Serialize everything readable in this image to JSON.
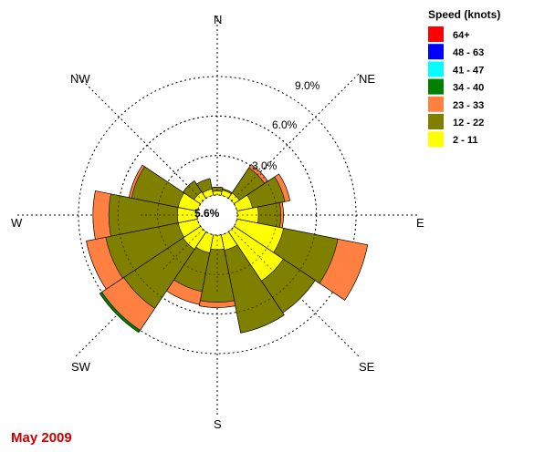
{
  "chart_data": {
    "type": "wind-rose",
    "legend_title": "Speed (knots)",
    "bins": [
      {
        "label": "64+",
        "color": "#ff0000"
      },
      {
        "label": "48 - 63",
        "color": "#0000ff"
      },
      {
        "label": "41 - 47",
        "color": "#00ffff"
      },
      {
        "label": "34 - 40",
        "color": "#008000"
      },
      {
        "label": "23 - 33",
        "color": "#ff8040"
      },
      {
        "label": "12 - 22",
        "color": "#808000"
      },
      {
        "label": "2 - 11",
        "color": "#ffff00"
      }
    ],
    "rings": [
      {
        "value": 3.0,
        "label": "3.0%"
      },
      {
        "value": 6.0,
        "label": "6.0%"
      },
      {
        "value": 9.0,
        "label": "9.0%"
      }
    ],
    "calm_label": "5.6%",
    "calm_percent": 5.6,
    "directions": [
      "N",
      "NNE",
      "NE",
      "ENE",
      "E",
      "ESE",
      "SE",
      "SSE",
      "S",
      "SSW",
      "SW",
      "WSW",
      "W",
      "WNW",
      "NW",
      "NNW"
    ],
    "compass_labels": [
      "N",
      "NE",
      "E",
      "SE",
      "S",
      "SW",
      "W",
      "NW"
    ],
    "cumulative_percent": [
      {
        "dir": "N",
        "2-11": 0.3,
        "12-22": 0.6,
        "23-33": 0.6,
        "34-40": 0.6
      },
      {
        "dir": "NNE",
        "2-11": 0.4,
        "12-22": 0.5,
        "23-33": 0.5,
        "34-40": 0.5
      },
      {
        "dir": "NE",
        "2-11": 0.5,
        "12-22": 2.8,
        "23-33": 3.1,
        "34-40": 3.1
      },
      {
        "dir": "ENE",
        "2-11": 1.2,
        "12-22": 3.7,
        "23-33": 4.1,
        "34-40": 4.1
      },
      {
        "dir": "E",
        "2-11": 1.6,
        "12-22": 3.3,
        "23-33": 3.5,
        "34-40": 3.5
      },
      {
        "dir": "ESE",
        "2-11": 3.6,
        "12-22": 7.8,
        "23-33": 10.1,
        "34-40": 10.1
      },
      {
        "dir": "SE",
        "2-11": 4.5,
        "12-22": 7.4,
        "23-33": 7.4,
        "34-40": 7.4
      },
      {
        "dir": "SSE",
        "2-11": 1.2,
        "12-22": 7.6,
        "23-33": 7.6,
        "34-40": 7.6
      },
      {
        "dir": "S",
        "2-11": 1.1,
        "12-22": 5.1,
        "23-33": 5.5,
        "34-40": 5.5
      },
      {
        "dir": "SSW",
        "2-11": 1.4,
        "12-22": 4.4,
        "23-33": 5.4,
        "34-40": 5.4
      },
      {
        "dir": "SW",
        "2-11": 1.6,
        "12-22": 7.0,
        "23-33": 9.0,
        "34-40": 9.2
      },
      {
        "dir": "WSW",
        "2-11": 1.5,
        "12-22": 7.1,
        "23-33": 8.6,
        "34-40": 8.6
      },
      {
        "dir": "W",
        "2-11": 1.5,
        "12-22": 6.7,
        "23-33": 7.9,
        "34-40": 7.9
      },
      {
        "dir": "WNW",
        "2-11": 1.5,
        "12-22": 5.1,
        "23-33": 5.3,
        "34-40": 5.3
      },
      {
        "dir": "NW",
        "2-11": 0.6,
        "12-22": 1.6,
        "23-33": 1.6,
        "34-40": 1.6
      },
      {
        "dir": "NNW",
        "2-11": 0.5,
        "12-22": 1.3,
        "23-33": 1.3,
        "34-40": 1.3
      }
    ]
  },
  "caption": "May 2009"
}
